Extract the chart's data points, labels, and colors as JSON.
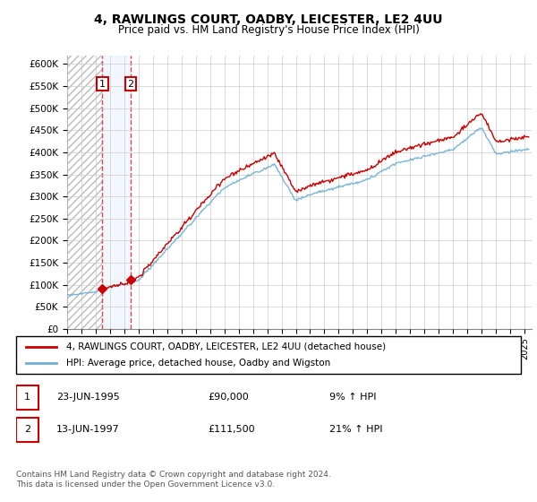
{
  "title": "4, RAWLINGS COURT, OADBY, LEICESTER, LE2 4UU",
  "subtitle": "Price paid vs. HM Land Registry's House Price Index (HPI)",
  "ylabel_ticks": [
    "£0",
    "£50K",
    "£100K",
    "£150K",
    "£200K",
    "£250K",
    "£300K",
    "£350K",
    "£400K",
    "£450K",
    "£500K",
    "£550K",
    "£600K"
  ],
  "ylim": [
    0,
    620000
  ],
  "yticks": [
    0,
    50000,
    100000,
    150000,
    200000,
    250000,
    300000,
    350000,
    400000,
    450000,
    500000,
    550000,
    600000
  ],
  "xlim_start": 1993.0,
  "xlim_end": 2025.5,
  "purchase_dates": [
    1995.47,
    1997.45
  ],
  "purchase_prices": [
    90000,
    111500
  ],
  "purchase_labels": [
    "1",
    "2"
  ],
  "hpi_color": "#6baed6",
  "price_color": "#cc0000",
  "marker_color": "#cc0000",
  "purchase1_date": "23-JUN-1995",
  "purchase1_price": "£90,000",
  "purchase1_hpi": "9% ↑ HPI",
  "purchase2_date": "13-JUN-1997",
  "purchase2_price": "£111,500",
  "purchase2_hpi": "21% ↑ HPI",
  "legend_line1": "4, RAWLINGS COURT, OADBY, LEICESTER, LE2 4UU (detached house)",
  "legend_line2": "HPI: Average price, detached house, Oadby and Wigston",
  "footer": "Contains HM Land Registry data © Crown copyright and database right 2024.\nThis data is licensed under the Open Government Licence v3.0.",
  "bg_color": "#ffffff",
  "grid_color": "#cccccc"
}
